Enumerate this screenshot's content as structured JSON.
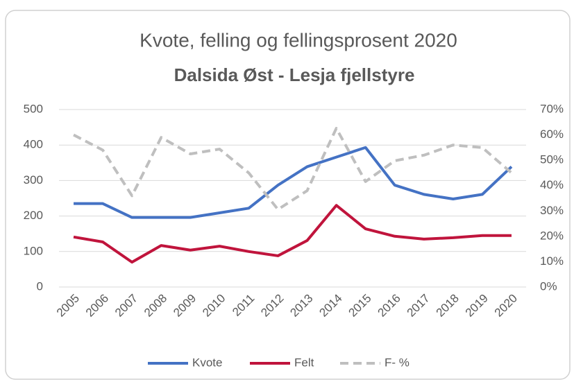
{
  "chart_data": {
    "type": "line",
    "title": "Kvote, felling og fellingsprosent 2020",
    "subtitle": "Dalsida Øst -  Lesja fjellstyre",
    "categories": [
      "2005",
      "2006",
      "2007",
      "2008",
      "2009",
      "2010",
      "2011",
      "2012",
      "2013",
      "2014",
      "2015",
      "2016",
      "2017",
      "2018",
      "2019",
      "2020"
    ],
    "series": [
      {
        "name": "Kvote",
        "color": "#4472c4",
        "values": [
          235,
          235,
          196,
          196,
          196,
          209,
          222,
          287,
          339,
          366,
          393,
          287,
          261,
          248,
          261,
          339
        ]
      },
      {
        "name": "Felt",
        "color": "#c0143c",
        "values": [
          141,
          127,
          70,
          117,
          104,
          115,
          100,
          88,
          131,
          230,
          164,
          143,
          135,
          139,
          145,
          145
        ]
      },
      {
        "name": "F- %",
        "color": "#bfbfbf",
        "axis": "y2",
        "dashed": true,
        "values": [
          60,
          54,
          36,
          59,
          52.5,
          54.4,
          45,
          30.6,
          38,
          62.6,
          41.6,
          49.8,
          52,
          56,
          55,
          45
        ]
      }
    ],
    "ylim": [
      0,
      500
    ],
    "yticks": [
      0,
      100,
      200,
      300,
      400,
      500
    ],
    "y2lim": [
      0,
      70
    ],
    "y2ticks": [
      {
        "value": 0,
        "label": "0%"
      },
      {
        "value": 10,
        "label": "10%"
      },
      {
        "value": 20,
        "label": "20%"
      },
      {
        "value": 30,
        "label": "30%"
      },
      {
        "value": 40,
        "label": "40%"
      },
      {
        "value": 50,
        "label": "50%"
      },
      {
        "value": 60,
        "label": "60%"
      },
      {
        "value": 70,
        "label": "70%"
      }
    ],
    "grid": true,
    "legend": "bottom"
  }
}
